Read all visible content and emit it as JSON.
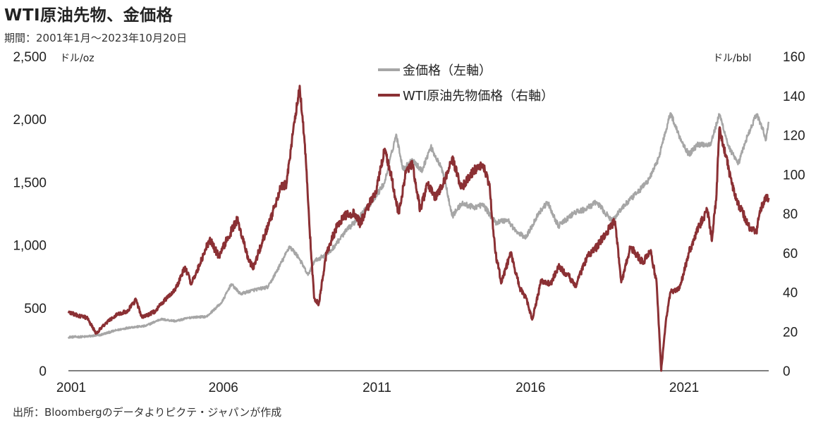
{
  "title": "WTI原油先物、金価格",
  "period": "期間：2001年1月～2023年10月20日",
  "source": "出所：Bloombergのデータよりピクテ・ジャパンが作成",
  "chart_data": {
    "type": "line",
    "title": "WTI原油先物、金価格",
    "left_axis": {
      "unit": "ドル/oz",
      "ylim": [
        0,
        2500
      ],
      "ticks": [
        "0",
        "500",
        "1,000",
        "1,500",
        "2,000",
        "2,500"
      ]
    },
    "right_axis": {
      "unit": "ドル/bbl",
      "ylim": [
        0,
        160
      ],
      "ticks": [
        "0",
        "20",
        "40",
        "60",
        "80",
        "100",
        "120",
        "140",
        "160"
      ]
    },
    "x_axis": {
      "xlim": [
        2001.0,
        2023.8
      ],
      "ticks": [
        "2001",
        "2006",
        "2011",
        "2016",
        "2021"
      ]
    },
    "legend_position": "top-center",
    "grid": false,
    "series": [
      {
        "name": "金価格（左軸）",
        "axis": "left",
        "color": "#a6a6a6",
        "points": [
          [
            2001.0,
            268
          ],
          [
            2001.5,
            270
          ],
          [
            2002.0,
            282
          ],
          [
            2002.5,
            318
          ],
          [
            2003.0,
            345
          ],
          [
            2003.5,
            355
          ],
          [
            2004.0,
            410
          ],
          [
            2004.5,
            395
          ],
          [
            2005.0,
            425
          ],
          [
            2005.5,
            430
          ],
          [
            2006.0,
            545
          ],
          [
            2006.3,
            690
          ],
          [
            2006.6,
            610
          ],
          [
            2007.0,
            640
          ],
          [
            2007.5,
            665
          ],
          [
            2008.0,
            890
          ],
          [
            2008.2,
            990
          ],
          [
            2008.5,
            900
          ],
          [
            2008.8,
            760
          ],
          [
            2009.0,
            870
          ],
          [
            2009.5,
            940
          ],
          [
            2010.0,
            1100
          ],
          [
            2010.5,
            1230
          ],
          [
            2011.0,
            1380
          ],
          [
            2011.3,
            1500
          ],
          [
            2011.67,
            1880
          ],
          [
            2011.9,
            1600
          ],
          [
            2012.2,
            1680
          ],
          [
            2012.5,
            1590
          ],
          [
            2012.8,
            1780
          ],
          [
            2013.2,
            1580
          ],
          [
            2013.5,
            1230
          ],
          [
            2013.8,
            1330
          ],
          [
            2014.2,
            1300
          ],
          [
            2014.5,
            1320
          ],
          [
            2014.9,
            1180
          ],
          [
            2015.3,
            1200
          ],
          [
            2015.6,
            1100
          ],
          [
            2015.9,
            1060
          ],
          [
            2016.3,
            1250
          ],
          [
            2016.6,
            1340
          ],
          [
            2016.95,
            1150
          ],
          [
            2017.5,
            1260
          ],
          [
            2017.8,
            1280
          ],
          [
            2018.2,
            1340
          ],
          [
            2018.7,
            1190
          ],
          [
            2019.0,
            1290
          ],
          [
            2019.5,
            1410
          ],
          [
            2019.9,
            1520
          ],
          [
            2020.2,
            1680
          ],
          [
            2020.6,
            2050
          ],
          [
            2020.9,
            1860
          ],
          [
            2021.2,
            1720
          ],
          [
            2021.5,
            1800
          ],
          [
            2021.9,
            1800
          ],
          [
            2022.2,
            2040
          ],
          [
            2022.5,
            1780
          ],
          [
            2022.8,
            1640
          ],
          [
            2023.1,
            1860
          ],
          [
            2023.4,
            2040
          ],
          [
            2023.6,
            1930
          ],
          [
            2023.7,
            1830
          ],
          [
            2023.8,
            1980
          ]
        ]
      },
      {
        "name": "WTI原油先物価格（右軸）",
        "axis": "right",
        "color": "#8b3034",
        "points": [
          [
            2001.0,
            30
          ],
          [
            2001.3,
            28
          ],
          [
            2001.6,
            27
          ],
          [
            2001.9,
            19
          ],
          [
            2002.2,
            24
          ],
          [
            2002.6,
            29
          ],
          [
            2002.9,
            30
          ],
          [
            2003.2,
            36
          ],
          [
            2003.4,
            27
          ],
          [
            2003.8,
            30
          ],
          [
            2004.2,
            37
          ],
          [
            2004.5,
            42
          ],
          [
            2004.8,
            53
          ],
          [
            2005.0,
            44
          ],
          [
            2005.3,
            55
          ],
          [
            2005.6,
            67
          ],
          [
            2005.9,
            58
          ],
          [
            2006.2,
            68
          ],
          [
            2006.5,
            77
          ],
          [
            2006.8,
            60
          ],
          [
            2007.0,
            52
          ],
          [
            2007.3,
            65
          ],
          [
            2007.6,
            78
          ],
          [
            2007.9,
            93
          ],
          [
            2008.1,
            95
          ],
          [
            2008.3,
            120
          ],
          [
            2008.53,
            145
          ],
          [
            2008.7,
            115
          ],
          [
            2008.9,
            60
          ],
          [
            2009.0,
            37
          ],
          [
            2009.15,
            34
          ],
          [
            2009.4,
            60
          ],
          [
            2009.7,
            72
          ],
          [
            2010.0,
            79
          ],
          [
            2010.3,
            80
          ],
          [
            2010.5,
            75
          ],
          [
            2010.8,
            85
          ],
          [
            2011.0,
            90
          ],
          [
            2011.3,
            113
          ],
          [
            2011.5,
            100
          ],
          [
            2011.75,
            80
          ],
          [
            2012.0,
            102
          ],
          [
            2012.2,
            105
          ],
          [
            2012.45,
            82
          ],
          [
            2012.7,
            95
          ],
          [
            2012.95,
            88
          ],
          [
            2013.2,
            95
          ],
          [
            2013.5,
            108
          ],
          [
            2013.8,
            93
          ],
          [
            2014.2,
            102
          ],
          [
            2014.5,
            105
          ],
          [
            2014.7,
            95
          ],
          [
            2014.9,
            60
          ],
          [
            2015.1,
            45
          ],
          [
            2015.4,
            60
          ],
          [
            2015.7,
            42
          ],
          [
            2015.9,
            37
          ],
          [
            2016.1,
            26
          ],
          [
            2016.4,
            46
          ],
          [
            2016.7,
            44
          ],
          [
            2016.95,
            53
          ],
          [
            2017.3,
            48
          ],
          [
            2017.5,
            43
          ],
          [
            2017.9,
            58
          ],
          [
            2018.2,
            63
          ],
          [
            2018.5,
            70
          ],
          [
            2018.8,
            76
          ],
          [
            2019.0,
            45
          ],
          [
            2019.3,
            63
          ],
          [
            2019.7,
            55
          ],
          [
            2019.95,
            61
          ],
          [
            2020.15,
            45
          ],
          [
            2020.3,
            0
          ],
          [
            2020.45,
            25
          ],
          [
            2020.6,
            40
          ],
          [
            2020.9,
            42
          ],
          [
            2021.2,
            60
          ],
          [
            2021.5,
            72
          ],
          [
            2021.8,
            82
          ],
          [
            2021.95,
            66
          ],
          [
            2022.1,
            90
          ],
          [
            2022.19,
            123
          ],
          [
            2022.4,
            110
          ],
          [
            2022.6,
            95
          ],
          [
            2022.8,
            85
          ],
          [
            2023.0,
            79
          ],
          [
            2023.2,
            72
          ],
          [
            2023.4,
            71
          ],
          [
            2023.5,
            80
          ],
          [
            2023.7,
            89
          ],
          [
            2023.8,
            88
          ]
        ]
      }
    ]
  }
}
